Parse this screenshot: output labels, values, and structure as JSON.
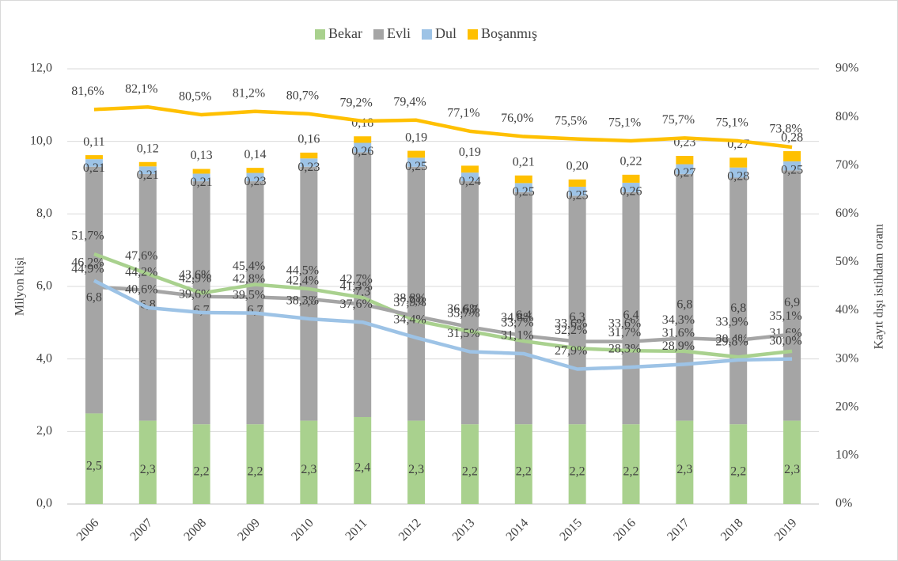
{
  "chart_data": {
    "type": "bar",
    "y_label": "Milyon kişi",
    "y2_label": "Kayıt dışı istihdam oranı",
    "categories": [
      "2006",
      "2007",
      "2008",
      "2009",
      "2010",
      "2011",
      "2012",
      "2013",
      "2014",
      "2015",
      "2016",
      "2017",
      "2018",
      "2019"
    ],
    "ylim": [
      0,
      12
    ],
    "yticks": [
      {
        "value": 0,
        "label": "0,0"
      },
      {
        "value": 2,
        "label": "2,0"
      },
      {
        "value": 4,
        "label": "4,0"
      },
      {
        "value": 6,
        "label": "6,0"
      },
      {
        "value": 8,
        "label": "8,0"
      },
      {
        "value": 10,
        "label": "10,0"
      },
      {
        "value": 12,
        "label": "12,0"
      }
    ],
    "y2lim": [
      0,
      90
    ],
    "y2ticks": [
      {
        "value": 0,
        "label": "0%"
      },
      {
        "value": 10,
        "label": "10%"
      },
      {
        "value": 20,
        "label": "20%"
      },
      {
        "value": 30,
        "label": "30%"
      },
      {
        "value": 40,
        "label": "40%"
      },
      {
        "value": 50,
        "label": "50%"
      },
      {
        "value": 60,
        "label": "60%"
      },
      {
        "value": 70,
        "label": "70%"
      },
      {
        "value": 80,
        "label": "80%"
      },
      {
        "value": 90,
        "label": "90%"
      }
    ],
    "grid": true,
    "legend": "top",
    "series": [
      {
        "name": "Bekar",
        "type": "bar",
        "color": "#a9d18e",
        "values": [
          2.5,
          2.3,
          2.2,
          2.2,
          2.3,
          2.4,
          2.3,
          2.2,
          2.2,
          2.2,
          2.2,
          2.3,
          2.2,
          2.3
        ],
        "value_labels": [
          "2,5",
          "2,3",
          "2,2",
          "2,2",
          "2,3",
          "2,4",
          "2,3",
          "2,2",
          "2,2",
          "2,2",
          "2,2",
          "2,3",
          "2,2",
          "2,3"
        ]
      },
      {
        "name": "Evli",
        "type": "bar",
        "color": "#a5a5a5",
        "values": [
          6.8,
          6.8,
          6.7,
          6.7,
          7.0,
          7.3,
          7.0,
          6.7,
          6.4,
          6.3,
          6.4,
          6.8,
          6.8,
          6.9
        ],
        "value_labels": [
          "6,8",
          "6,8",
          "6,7",
          "6,7",
          "7,0",
          "7,3",
          "7,0",
          "6,7",
          "6,4",
          "6,3",
          "6,4",
          "6,8",
          "6,8",
          "6,9"
        ]
      },
      {
        "name": "Dul",
        "type": "bar",
        "color": "#9dc3e6",
        "values": [
          0.21,
          0.21,
          0.21,
          0.23,
          0.23,
          0.26,
          0.25,
          0.24,
          0.25,
          0.25,
          0.26,
          0.27,
          0.28,
          0.25
        ],
        "value_labels": [
          "0,21",
          "0,21",
          "0,21",
          "0,23",
          "0,23",
          "0,26",
          "0,25",
          "0,24",
          "0,25",
          "0,25",
          "0,26",
          "0,27",
          "0,28",
          "0,25"
        ]
      },
      {
        "name": "Boşanmış",
        "type": "bar",
        "color": "#ffc000",
        "values": [
          0.11,
          0.12,
          0.13,
          0.14,
          0.16,
          0.18,
          0.19,
          0.19,
          0.21,
          0.2,
          0.22,
          0.23,
          0.27,
          0.28
        ],
        "value_labels": [
          "0,11",
          "0,12",
          "0,13",
          "0,14",
          "0,16",
          "0,18",
          "0,19",
          "0,19",
          "0,21",
          "0,20",
          "0,22",
          "0,23",
          "0,27",
          "0,28"
        ]
      },
      {
        "type": "line",
        "axis": "y2",
        "color": "#a9d18e",
        "values": [
          51.7,
          47.6,
          43.6,
          45.4,
          44.5,
          42.7,
          37.9,
          35.7,
          33.7,
          32.2,
          31.7,
          31.6,
          30.4,
          31.6
        ],
        "value_labels": [
          "51,7%",
          "47,6%",
          "43,6%",
          "45,4%",
          "44,5%",
          "42,7%",
          "37,9%",
          "35,7%",
          "33,7%",
          "32,2%",
          "31,7%",
          "31,6%",
          "30,4%",
          "31,6%"
        ]
      },
      {
        "type": "line",
        "axis": "y2",
        "color": "#a5a5a5",
        "values": [
          44.9,
          44.2,
          42.9,
          42.8,
          42.4,
          41.3,
          38.8,
          36.6,
          34.8,
          33.6,
          33.6,
          34.3,
          33.9,
          35.1
        ],
        "value_labels": [
          "44,9%",
          "44,2%",
          "42,9%",
          "42,8%",
          "42,4%",
          "41,3%",
          "38,8%",
          "36,6%",
          "34,8%",
          "33,6%",
          "33,6%",
          "34,3%",
          "33,9%",
          "35,1%"
        ]
      },
      {
        "type": "line",
        "axis": "y2",
        "color": "#9dc3e6",
        "values": [
          46.2,
          40.6,
          39.6,
          39.5,
          38.3,
          37.6,
          34.4,
          31.5,
          31.1,
          27.9,
          28.3,
          28.9,
          29.8,
          30.0
        ],
        "value_labels": [
          "46,2%",
          "40,6%",
          "39,6%",
          "39,5%",
          "38,3%",
          "37,6%",
          "34,4%",
          "31,5%",
          "31,1%",
          "27,9%",
          "28,3%",
          "28,9%",
          "29,8%",
          "30,0%"
        ]
      },
      {
        "type": "line",
        "axis": "y2",
        "color": "#ffc000",
        "values": [
          81.6,
          82.1,
          80.5,
          81.2,
          80.7,
          79.2,
          79.4,
          77.1,
          76.0,
          75.5,
          75.1,
          75.7,
          75.1,
          73.8
        ],
        "value_labels": [
          "81,6%",
          "82,1%",
          "80,5%",
          "81,2%",
          "80,7%",
          "79,2%",
          "79,4%",
          "77,1%",
          "76,0%",
          "75,5%",
          "75,1%",
          "75,7%",
          "75,1%",
          "73,8%"
        ]
      }
    ]
  }
}
